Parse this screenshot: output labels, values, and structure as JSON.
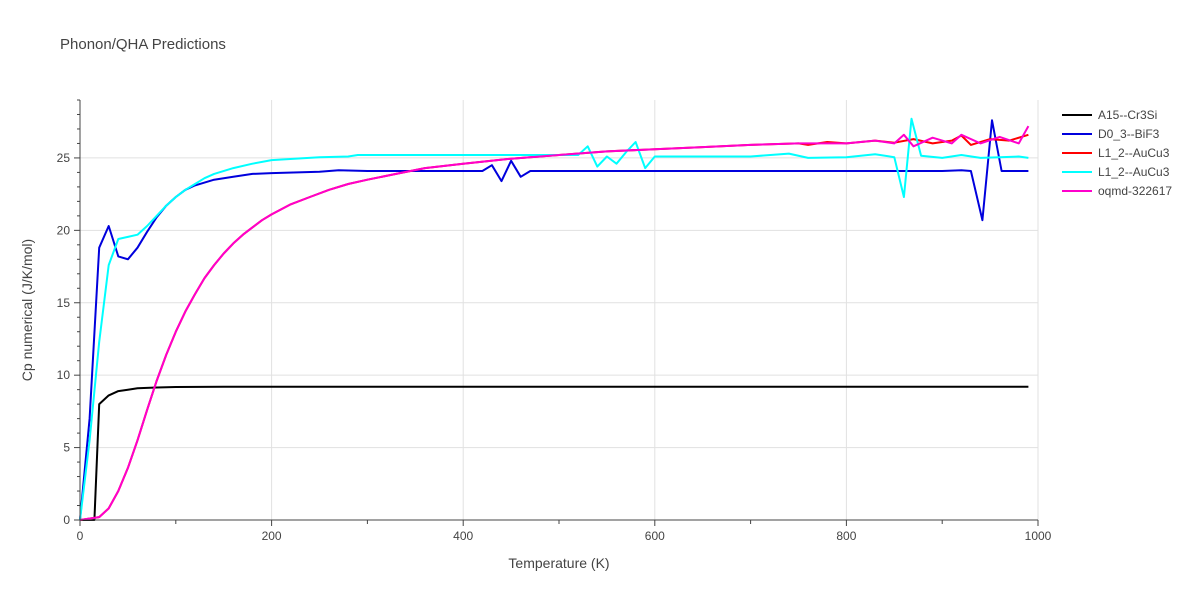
{
  "chart_data": {
    "type": "line",
    "title": "Phonon/QHA Predictions",
    "xlabel": "Temperature (K)",
    "ylabel": "Cp numerical (J/K/mol)",
    "xlim": [
      0,
      1000
    ],
    "ylim": [
      0,
      29
    ],
    "xticks": [
      0,
      200,
      400,
      600,
      800,
      1000
    ],
    "yticks": [
      0,
      5,
      10,
      15,
      20,
      25
    ],
    "grid": true,
    "legend_position": "top-right",
    "series": [
      {
        "name": "A15--Cr3Si",
        "color": "#000000",
        "points": [
          [
            0,
            0
          ],
          [
            15,
            0
          ],
          [
            20,
            8.0
          ],
          [
            30,
            8.6
          ],
          [
            40,
            8.9
          ],
          [
            50,
            9.0
          ],
          [
            60,
            9.1
          ],
          [
            80,
            9.15
          ],
          [
            100,
            9.18
          ],
          [
            150,
            9.2
          ],
          [
            200,
            9.2
          ],
          [
            400,
            9.2
          ],
          [
            600,
            9.2
          ],
          [
            800,
            9.2
          ],
          [
            990,
            9.2
          ]
        ]
      },
      {
        "name": "D0_3--BiF3",
        "color": "#0000dd",
        "points": [
          [
            0,
            0
          ],
          [
            10,
            7.0
          ],
          [
            20,
            18.8
          ],
          [
            30,
            20.3
          ],
          [
            40,
            18.2
          ],
          [
            50,
            18.0
          ],
          [
            60,
            18.8
          ],
          [
            70,
            19.9
          ],
          [
            80,
            20.9
          ],
          [
            90,
            21.7
          ],
          [
            100,
            22.3
          ],
          [
            110,
            22.8
          ],
          [
            120,
            23.1
          ],
          [
            140,
            23.5
          ],
          [
            160,
            23.7
          ],
          [
            180,
            23.9
          ],
          [
            200,
            23.95
          ],
          [
            250,
            24.05
          ],
          [
            270,
            24.15
          ],
          [
            300,
            24.1
          ],
          [
            400,
            24.1
          ],
          [
            420,
            24.1
          ],
          [
            430,
            24.5
          ],
          [
            440,
            23.4
          ],
          [
            450,
            24.8
          ],
          [
            460,
            23.7
          ],
          [
            470,
            24.1
          ],
          [
            500,
            24.1
          ],
          [
            700,
            24.1
          ],
          [
            800,
            24.1
          ],
          [
            900,
            24.1
          ],
          [
            920,
            24.15
          ],
          [
            930,
            24.1
          ],
          [
            942,
            20.7
          ],
          [
            952,
            27.6
          ],
          [
            962,
            24.1
          ],
          [
            990,
            24.1
          ]
        ]
      },
      {
        "name": "L1_2--AuCu3",
        "color": "#ff0000",
        "points": [
          [
            0,
            0
          ],
          [
            20,
            0.2
          ],
          [
            30,
            0.8
          ],
          [
            40,
            2.0
          ],
          [
            50,
            3.6
          ],
          [
            60,
            5.5
          ],
          [
            70,
            7.6
          ],
          [
            80,
            9.6
          ],
          [
            90,
            11.4
          ],
          [
            100,
            13.0
          ],
          [
            110,
            14.4
          ],
          [
            120,
            15.6
          ],
          [
            130,
            16.7
          ],
          [
            140,
            17.6
          ],
          [
            150,
            18.4
          ],
          [
            160,
            19.1
          ],
          [
            170,
            19.7
          ],
          [
            180,
            20.2
          ],
          [
            190,
            20.7
          ],
          [
            200,
            21.1
          ],
          [
            220,
            21.8
          ],
          [
            240,
            22.3
          ],
          [
            260,
            22.8
          ],
          [
            280,
            23.2
          ],
          [
            300,
            23.5
          ],
          [
            330,
            23.9
          ],
          [
            360,
            24.3
          ],
          [
            400,
            24.6
          ],
          [
            450,
            24.95
          ],
          [
            500,
            25.2
          ],
          [
            550,
            25.45
          ],
          [
            600,
            25.6
          ],
          [
            650,
            25.75
          ],
          [
            700,
            25.9
          ],
          [
            750,
            26.0
          ],
          [
            760,
            25.9
          ],
          [
            780,
            26.1
          ],
          [
            800,
            26.0
          ],
          [
            830,
            26.2
          ],
          [
            850,
            26.05
          ],
          [
            870,
            26.3
          ],
          [
            890,
            26.0
          ],
          [
            910,
            26.2
          ],
          [
            920,
            26.55
          ],
          [
            930,
            25.9
          ],
          [
            950,
            26.3
          ],
          [
            970,
            26.2
          ],
          [
            990,
            26.6
          ]
        ]
      },
      {
        "name": "L1_2--AuCu3",
        "color": "#00ffff",
        "points": [
          [
            0,
            0
          ],
          [
            10,
            5.5
          ],
          [
            20,
            12.3
          ],
          [
            30,
            17.6
          ],
          [
            40,
            19.4
          ],
          [
            50,
            19.55
          ],
          [
            60,
            19.7
          ],
          [
            70,
            20.3
          ],
          [
            80,
            21.0
          ],
          [
            90,
            21.7
          ],
          [
            100,
            22.3
          ],
          [
            110,
            22.8
          ],
          [
            120,
            23.2
          ],
          [
            130,
            23.6
          ],
          [
            140,
            23.9
          ],
          [
            160,
            24.3
          ],
          [
            180,
            24.6
          ],
          [
            200,
            24.85
          ],
          [
            250,
            25.05
          ],
          [
            280,
            25.1
          ],
          [
            290,
            25.2
          ],
          [
            400,
            25.2
          ],
          [
            500,
            25.2
          ],
          [
            520,
            25.2
          ],
          [
            530,
            25.8
          ],
          [
            540,
            24.4
          ],
          [
            550,
            25.1
          ],
          [
            560,
            24.6
          ],
          [
            570,
            25.4
          ],
          [
            580,
            26.1
          ],
          [
            590,
            24.3
          ],
          [
            600,
            25.1
          ],
          [
            650,
            25.1
          ],
          [
            700,
            25.1
          ],
          [
            740,
            25.3
          ],
          [
            760,
            25.0
          ],
          [
            800,
            25.05
          ],
          [
            830,
            25.25
          ],
          [
            850,
            25.05
          ],
          [
            860,
            22.3
          ],
          [
            868,
            27.7
          ],
          [
            878,
            25.15
          ],
          [
            900,
            25.0
          ],
          [
            920,
            25.2
          ],
          [
            940,
            25.0
          ],
          [
            960,
            25.05
          ],
          [
            980,
            25.1
          ],
          [
            990,
            25.0
          ]
        ]
      },
      {
        "name": "oqmd-322617",
        "color": "#ff00cc",
        "points": [
          [
            0,
            0
          ],
          [
            20,
            0.2
          ],
          [
            30,
            0.8
          ],
          [
            40,
            2.0
          ],
          [
            50,
            3.6
          ],
          [
            60,
            5.5
          ],
          [
            70,
            7.6
          ],
          [
            80,
            9.6
          ],
          [
            90,
            11.4
          ],
          [
            100,
            13.0
          ],
          [
            110,
            14.4
          ],
          [
            120,
            15.6
          ],
          [
            130,
            16.7
          ],
          [
            140,
            17.6
          ],
          [
            150,
            18.4
          ],
          [
            160,
            19.1
          ],
          [
            170,
            19.7
          ],
          [
            180,
            20.2
          ],
          [
            190,
            20.7
          ],
          [
            200,
            21.1
          ],
          [
            220,
            21.8
          ],
          [
            240,
            22.3
          ],
          [
            260,
            22.8
          ],
          [
            280,
            23.2
          ],
          [
            300,
            23.5
          ],
          [
            330,
            23.9
          ],
          [
            360,
            24.3
          ],
          [
            400,
            24.6
          ],
          [
            450,
            24.95
          ],
          [
            500,
            25.2
          ],
          [
            550,
            25.45
          ],
          [
            600,
            25.6
          ],
          [
            650,
            25.75
          ],
          [
            700,
            25.9
          ],
          [
            750,
            26.0
          ],
          [
            800,
            26.0
          ],
          [
            830,
            26.2
          ],
          [
            850,
            26.0
          ],
          [
            860,
            26.6
          ],
          [
            870,
            25.8
          ],
          [
            890,
            26.4
          ],
          [
            910,
            26.0
          ],
          [
            920,
            26.6
          ],
          [
            940,
            26.0
          ],
          [
            960,
            26.45
          ],
          [
            980,
            26.0
          ],
          [
            990,
            27.2
          ]
        ]
      }
    ]
  }
}
